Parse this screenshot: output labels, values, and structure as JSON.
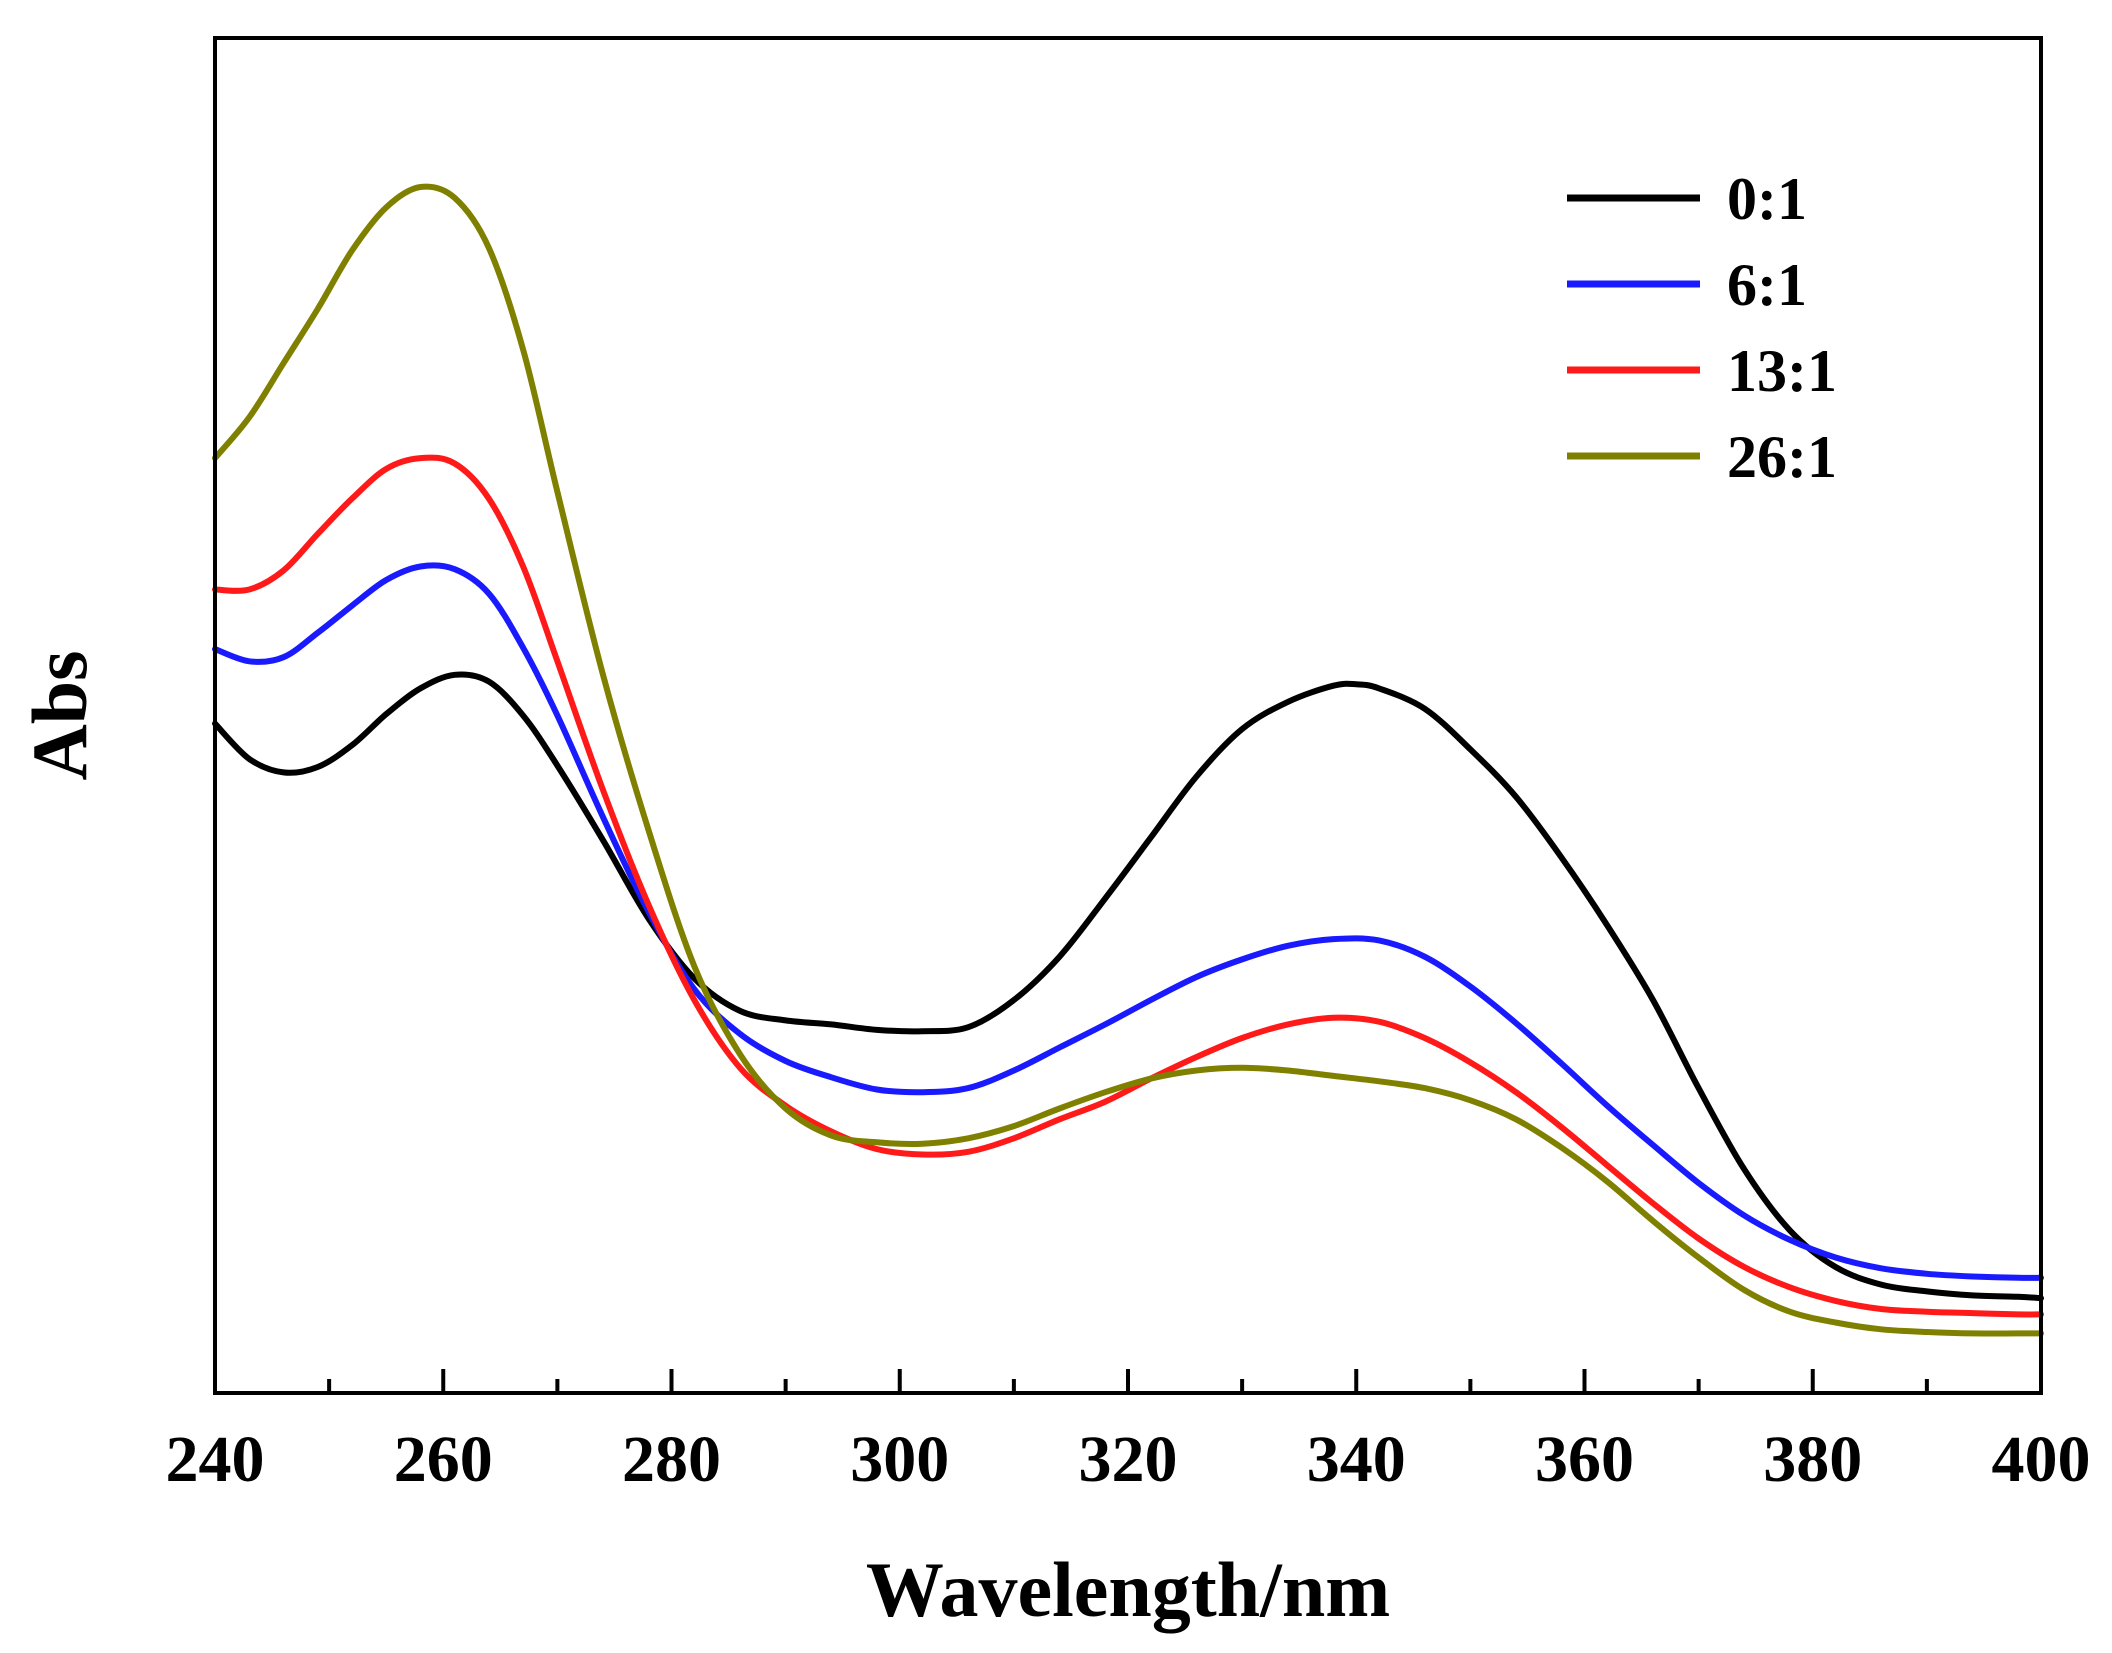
{
  "chart_data": {
    "type": "line",
    "title": "",
    "xlabel": "Wavelength/nm",
    "ylabel": "Abs",
    "xlim": [
      240,
      400
    ],
    "ylim": [
      0,
      1
    ],
    "xticks": [
      240,
      260,
      280,
      300,
      320,
      340,
      360,
      380,
      400
    ],
    "xtick_labels": [
      "240",
      "260",
      "280",
      "300",
      "320",
      "340",
      "360",
      "380",
      "400"
    ],
    "y_tick_labels_shown": false,
    "grid": false,
    "legend_position": "top-right",
    "series": [
      {
        "name": "0:1",
        "color": "#000000",
        "x": [
          240,
          243,
          246,
          249,
          252,
          255,
          258,
          261,
          264,
          267,
          270,
          274,
          278,
          282,
          286,
          290,
          294,
          298,
          302,
          306,
          310,
          314,
          318,
          322,
          326,
          330,
          334,
          338,
          340,
          342,
          346,
          350,
          354,
          358,
          362,
          366,
          370,
          374,
          378,
          382,
          386,
          390,
          394,
          398,
          400
        ],
        "y": [
          0.494,
          0.468,
          0.458,
          0.462,
          0.478,
          0.501,
          0.52,
          0.53,
          0.525,
          0.5,
          0.463,
          0.408,
          0.35,
          0.306,
          0.282,
          0.275,
          0.272,
          0.268,
          0.267,
          0.27,
          0.29,
          0.322,
          0.365,
          0.41,
          0.455,
          0.49,
          0.51,
          0.522,
          0.523,
          0.52,
          0.505,
          0.475,
          0.44,
          0.395,
          0.345,
          0.29,
          0.225,
          0.165,
          0.12,
          0.093,
          0.08,
          0.075,
          0.072,
          0.071,
          0.07
        ]
      },
      {
        "name": "6:1",
        "color": "#1a1aff",
        "x": [
          240,
          243,
          246,
          249,
          252,
          255,
          258,
          261,
          264,
          267,
          270,
          274,
          278,
          282,
          286,
          290,
          294,
          298,
          302,
          306,
          310,
          314,
          318,
          322,
          326,
          330,
          334,
          338,
          342,
          346,
          350,
          354,
          358,
          362,
          366,
          370,
          374,
          378,
          382,
          386,
          390,
          394,
          398,
          400
        ],
        "y": [
          0.549,
          0.54,
          0.543,
          0.561,
          0.581,
          0.6,
          0.61,
          0.608,
          0.59,
          0.55,
          0.5,
          0.425,
          0.355,
          0.298,
          0.265,
          0.245,
          0.233,
          0.224,
          0.222,
          0.225,
          0.238,
          0.255,
          0.272,
          0.29,
          0.307,
          0.32,
          0.33,
          0.335,
          0.334,
          0.322,
          0.3,
          0.273,
          0.243,
          0.212,
          0.183,
          0.155,
          0.131,
          0.113,
          0.1,
          0.092,
          0.088,
          0.086,
          0.085,
          0.085
        ]
      },
      {
        "name": "13:1",
        "color": "#ff1a1a",
        "x": [
          240,
          243,
          246,
          249,
          252,
          255,
          258,
          261,
          264,
          267,
          270,
          274,
          278,
          282,
          286,
          290,
          294,
          298,
          302,
          306,
          310,
          314,
          318,
          322,
          326,
          330,
          334,
          338,
          342,
          346,
          350,
          354,
          358,
          362,
          366,
          370,
          374,
          378,
          382,
          386,
          390,
          394,
          398,
          400
        ],
        "y": [
          0.593,
          0.593,
          0.607,
          0.634,
          0.66,
          0.682,
          0.69,
          0.686,
          0.66,
          0.61,
          0.54,
          0.445,
          0.36,
          0.29,
          0.24,
          0.212,
          0.193,
          0.18,
          0.176,
          0.178,
          0.188,
          0.202,
          0.215,
          0.232,
          0.248,
          0.262,
          0.272,
          0.277,
          0.274,
          0.262,
          0.244,
          0.222,
          0.196,
          0.168,
          0.14,
          0.114,
          0.093,
          0.078,
          0.068,
          0.062,
          0.06,
          0.059,
          0.058,
          0.058
        ]
      },
      {
        "name": "26:1",
        "color": "#808000",
        "x": [
          240,
          243,
          246,
          249,
          252,
          255,
          258,
          261,
          264,
          267,
          270,
          274,
          278,
          282,
          286,
          290,
          294,
          298,
          302,
          306,
          310,
          314,
          318,
          322,
          326,
          330,
          334,
          338,
          342,
          346,
          350,
          354,
          358,
          362,
          366,
          370,
          374,
          378,
          382,
          386,
          390,
          394,
          398,
          400
        ],
        "y": [
          0.69,
          0.72,
          0.76,
          0.8,
          0.843,
          0.875,
          0.89,
          0.882,
          0.845,
          0.77,
          0.665,
          0.53,
          0.415,
          0.315,
          0.25,
          0.21,
          0.19,
          0.185,
          0.184,
          0.188,
          0.197,
          0.21,
          0.222,
          0.232,
          0.238,
          0.24,
          0.238,
          0.234,
          0.23,
          0.225,
          0.216,
          0.202,
          0.181,
          0.156,
          0.127,
          0.1,
          0.076,
          0.06,
          0.052,
          0.047,
          0.045,
          0.044,
          0.044,
          0.044
        ]
      }
    ]
  }
}
